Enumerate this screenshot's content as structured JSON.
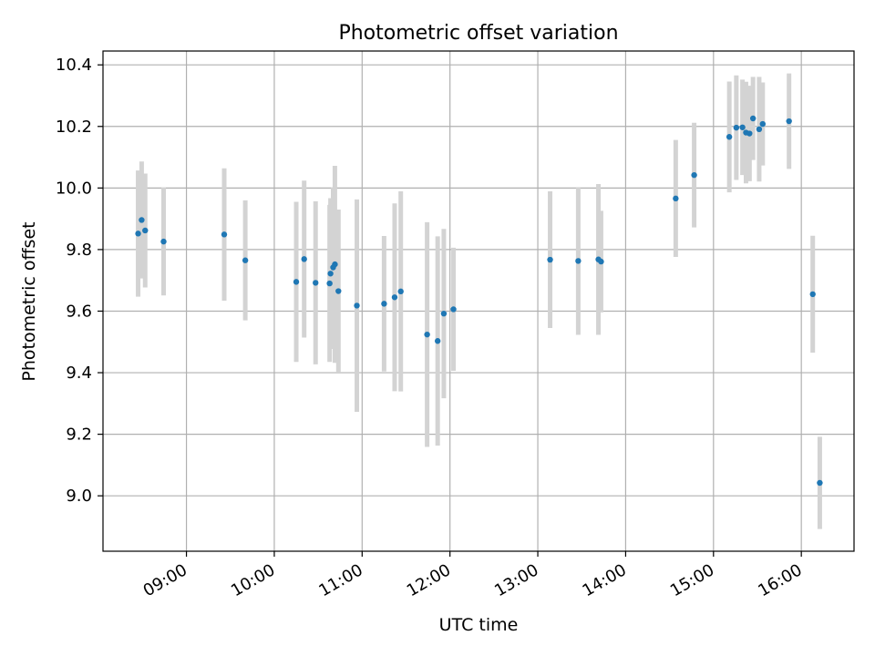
{
  "chart_data": {
    "type": "scatter",
    "title": "Photometric offset variation",
    "xlabel": "UTC time",
    "ylabel": "Photometric offset",
    "xlim_hours": [
      8.05,
      16.6
    ],
    "ylim": [
      8.82,
      10.445
    ],
    "grid": true,
    "x_ticks": [
      {
        "label": "09:00",
        "value": 9
      },
      {
        "label": "10:00",
        "value": 10
      },
      {
        "label": "11:00",
        "value": 11
      },
      {
        "label": "12:00",
        "value": 12
      },
      {
        "label": "13:00",
        "value": 13
      },
      {
        "label": "14:00",
        "value": 14
      },
      {
        "label": "15:00",
        "value": 15
      },
      {
        "label": "16:00",
        "value": 16
      }
    ],
    "y_ticks": [
      {
        "label": "9.0",
        "value": 9.0
      },
      {
        "label": "9.2",
        "value": 9.2
      },
      {
        "label": "9.4",
        "value": 9.4
      },
      {
        "label": "9.6",
        "value": 9.6
      },
      {
        "label": "9.8",
        "value": 9.8
      },
      {
        "label": "10.0",
        "value": 10.0
      },
      {
        "label": "10.2",
        "value": 10.2
      },
      {
        "label": "10.4",
        "value": 10.4
      }
    ],
    "colors": {
      "point": "#1f77b4",
      "errorbar": "#d3d3d3",
      "grid": "#b0b0b0"
    },
    "points": [
      {
        "t": 8.45,
        "y": 9.852,
        "err": 0.205
      },
      {
        "t": 8.49,
        "y": 9.896,
        "err": 0.19
      },
      {
        "t": 8.53,
        "y": 9.862,
        "err": 0.185
      },
      {
        "t": 8.74,
        "y": 9.826,
        "err": 0.175
      },
      {
        "t": 9.43,
        "y": 9.849,
        "err": 0.215
      },
      {
        "t": 9.67,
        "y": 9.765,
        "err": 0.195
      },
      {
        "t": 10.25,
        "y": 9.695,
        "err": 0.26
      },
      {
        "t": 10.34,
        "y": 9.769,
        "err": 0.255
      },
      {
        "t": 10.47,
        "y": 9.692,
        "err": 0.265
      },
      {
        "t": 10.63,
        "y": 9.69,
        "err": 0.255
      },
      {
        "t": 10.64,
        "y": 9.722,
        "err": 0.245
      },
      {
        "t": 10.67,
        "y": 9.742,
        "err": 0.26
      },
      {
        "t": 10.69,
        "y": 9.752,
        "err": 0.32
      },
      {
        "t": 10.73,
        "y": 9.665,
        "err": 0.265
      },
      {
        "t": 10.94,
        "y": 9.618,
        "err": 0.345
      },
      {
        "t": 11.25,
        "y": 9.624,
        "err": 0.22
      },
      {
        "t": 11.37,
        "y": 9.645,
        "err": 0.305
      },
      {
        "t": 11.44,
        "y": 9.664,
        "err": 0.325
      },
      {
        "t": 11.74,
        "y": 9.524,
        "err": 0.365
      },
      {
        "t": 11.86,
        "y": 9.503,
        "err": 0.34
      },
      {
        "t": 11.93,
        "y": 9.592,
        "err": 0.275
      },
      {
        "t": 12.04,
        "y": 9.606,
        "err": 0.2
      },
      {
        "t": 13.14,
        "y": 9.767,
        "err": 0.222
      },
      {
        "t": 13.46,
        "y": 9.763,
        "err": 0.24
      },
      {
        "t": 13.69,
        "y": 9.768,
        "err": 0.245
      },
      {
        "t": 13.72,
        "y": 9.761,
        "err": 0.165
      },
      {
        "t": 14.57,
        "y": 9.966,
        "err": 0.19
      },
      {
        "t": 14.78,
        "y": 10.042,
        "err": 0.17
      },
      {
        "t": 15.18,
        "y": 10.166,
        "err": 0.18
      },
      {
        "t": 15.26,
        "y": 10.196,
        "err": 0.17
      },
      {
        "t": 15.33,
        "y": 10.197,
        "err": 0.155
      },
      {
        "t": 15.37,
        "y": 10.18,
        "err": 0.165
      },
      {
        "t": 15.41,
        "y": 10.177,
        "err": 0.155
      },
      {
        "t": 15.45,
        "y": 10.226,
        "err": 0.135
      },
      {
        "t": 15.52,
        "y": 10.191,
        "err": 0.17
      },
      {
        "t": 15.56,
        "y": 10.208,
        "err": 0.135
      },
      {
        "t": 15.86,
        "y": 10.217,
        "err": 0.155
      },
      {
        "t": 16.13,
        "y": 9.655,
        "err": 0.19
      },
      {
        "t": 16.21,
        "y": 9.042,
        "err": 0.15
      }
    ]
  }
}
